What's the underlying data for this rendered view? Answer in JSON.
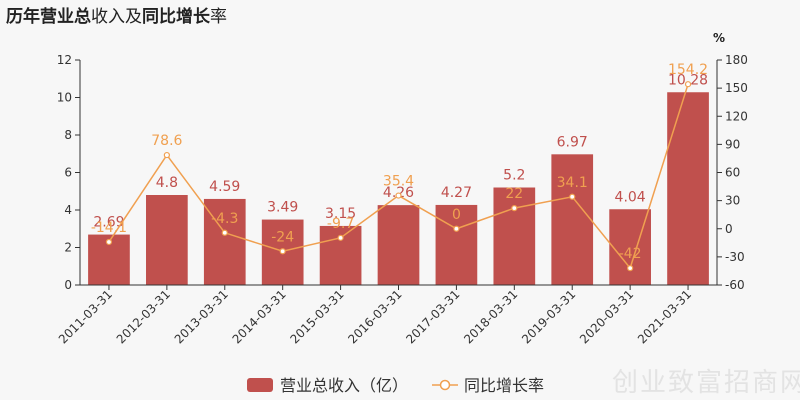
{
  "title_segments": [
    {
      "text": "历年",
      "bold": true
    },
    {
      "text": "营业总",
      "bold": true
    },
    {
      "text": "收入及",
      "bold": false
    },
    {
      "text": "同比增长",
      "bold": false
    },
    {
      "text": "率",
      "bold": false
    }
  ],
  "watermark": "创业致富招商网",
  "colors": {
    "bar": "#c0504d",
    "line": "#f0a050",
    "axis": "#333333",
    "background": "#f7f7f7"
  },
  "legend": {
    "bar_label": "营业总收入（亿）",
    "line_label": "同比增长率",
    "placement": "bottom-center"
  },
  "chart_data": {
    "type": "bar",
    "categories": [
      "2011-03-31",
      "2012-03-31",
      "2013-03-31",
      "2014-03-31",
      "2015-03-31",
      "2016-03-31",
      "2017-03-31",
      "2018-03-31",
      "2019-03-31",
      "2020-03-31",
      "2021-03-31"
    ],
    "series": [
      {
        "name": "营业总收入（亿）",
        "type": "bar",
        "axis": "left",
        "values": [
          2.69,
          4.8,
          4.59,
          3.49,
          3.15,
          4.26,
          4.27,
          5.2,
          6.97,
          4.04,
          10.28
        ],
        "labels": [
          "2.69",
          "4.8",
          "4.59",
          "3.49",
          "3.15",
          "4.26",
          "4.27",
          "5.2",
          "6.97",
          "4.04",
          "10.28"
        ]
      },
      {
        "name": "同比增长率",
        "type": "line",
        "axis": "right",
        "values": [
          -14.1,
          78.6,
          -4.3,
          -24,
          -9.7,
          35.4,
          0,
          22,
          34.1,
          -42,
          154.2
        ],
        "labels": [
          "-14.1",
          "78.6",
          "-4.3",
          "-24",
          "-9.7",
          "35.4",
          "0",
          "22",
          "34.1",
          "-42",
          "154.2"
        ]
      }
    ],
    "y_left": {
      "lim": [
        0,
        12
      ],
      "ticks": [
        "0",
        "2",
        "4",
        "6",
        "8",
        "10",
        "12"
      ]
    },
    "y_right": {
      "lim": [
        -60,
        180
      ],
      "ticks": [
        "-60",
        "-30",
        "0",
        "30",
        "60",
        "90",
        "120",
        "150",
        "180"
      ],
      "unit": "%"
    },
    "grid": false
  }
}
